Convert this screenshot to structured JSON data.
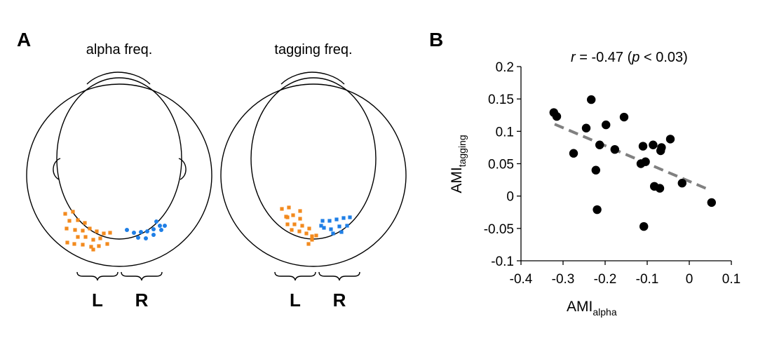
{
  "panel_a": {
    "letter": "A",
    "left_head": {
      "title": "alpha freq.",
      "left_label": "L",
      "right_label": "R",
      "left_color": "#f28a1e",
      "right_color": "#1f7fe6"
    },
    "right_head": {
      "title": "tagging freq.",
      "left_label": "L",
      "right_label": "R",
      "left_color": "#f28a1e",
      "right_color": "#1f7fe6"
    }
  },
  "chart_data": {
    "type": "scatter",
    "panel_letter": "B",
    "annotation": {
      "r_symbol": "r",
      "r_text": " = -0.47 (",
      "p_symbol": "p",
      "p_text": " < 0.03)"
    },
    "xlabel": {
      "main": "AMI",
      "sub": "alpha"
    },
    "ylabel": {
      "main": "AMI",
      "sub": "tagging"
    },
    "xlim": [
      -0.4,
      0.1
    ],
    "ylim": [
      -0.1,
      0.2
    ],
    "xticks": [
      -0.4,
      -0.3,
      -0.2,
      -0.1,
      0,
      0.1
    ],
    "xtick_labels": [
      "-0.4",
      "-0.3",
      "-0.2",
      "-0.1",
      "0",
      "0.1"
    ],
    "yticks": [
      -0.1,
      -0.05,
      0,
      0.05,
      0.1,
      0.15,
      0.2
    ],
    "ytick_labels": [
      "-0.1",
      "-0.05",
      "0",
      "0.05",
      "0.1",
      "0.15",
      "0.2"
    ],
    "point_color": "#000000",
    "fit_color": "#808080",
    "fit_line": {
      "x": [
        -0.32,
        0.05
      ],
      "y": [
        0.111,
        0.009
      ]
    },
    "points": [
      {
        "x": -0.322,
        "y": 0.129
      },
      {
        "x": -0.315,
        "y": 0.123
      },
      {
        "x": -0.275,
        "y": 0.066
      },
      {
        "x": -0.245,
        "y": 0.105
      },
      {
        "x": -0.233,
        "y": 0.149
      },
      {
        "x": -0.222,
        "y": 0.04
      },
      {
        "x": -0.219,
        "y": -0.021
      },
      {
        "x": -0.213,
        "y": 0.079
      },
      {
        "x": -0.198,
        "y": 0.11
      },
      {
        "x": -0.177,
        "y": 0.072
      },
      {
        "x": -0.155,
        "y": 0.122
      },
      {
        "x": -0.115,
        "y": 0.05
      },
      {
        "x": -0.11,
        "y": 0.077
      },
      {
        "x": -0.108,
        "y": -0.047
      },
      {
        "x": -0.104,
        "y": 0.053
      },
      {
        "x": -0.086,
        "y": 0.079
      },
      {
        "x": -0.083,
        "y": 0.015
      },
      {
        "x": -0.07,
        "y": 0.012
      },
      {
        "x": -0.068,
        "y": 0.07
      },
      {
        "x": -0.066,
        "y": 0.075
      },
      {
        "x": -0.045,
        "y": 0.088
      },
      {
        "x": -0.017,
        "y": 0.02
      },
      {
        "x": 0.053,
        "y": -0.01
      }
    ]
  }
}
